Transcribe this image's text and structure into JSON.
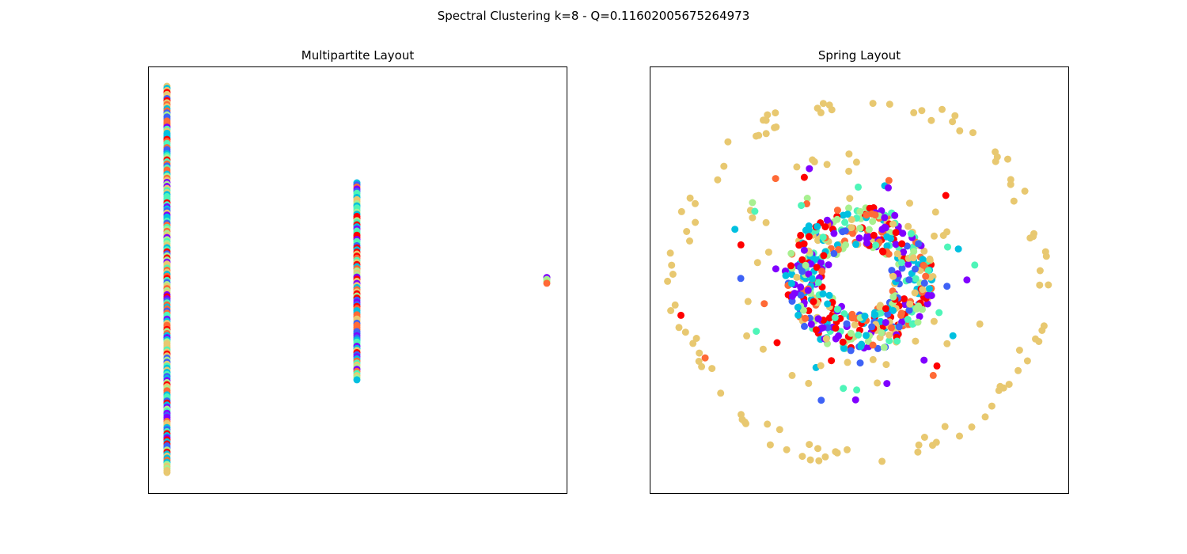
{
  "title": "Spectral Clustering k=8 - Q=0.11602005675264973",
  "chart_data": [
    {
      "type": "scatter",
      "title": "Multipartite Layout",
      "xlabel": "",
      "ylabel": "",
      "grid": false,
      "colors": [
        "#8000ff",
        "#3e62f6",
        "#00c0e0",
        "#4ef5b8",
        "#a8f090",
        "#e8c870",
        "#ff6a36",
        "#ff0000"
      ],
      "layers": [
        {
          "x": 0.0,
          "y_range": [
            0.0,
            1.0
          ],
          "points": 190
        },
        {
          "x": 0.5,
          "y_range": [
            0.24,
            0.75
          ],
          "points": 95
        },
        {
          "x": 1.0,
          "y_range": [
            0.49,
            0.505
          ],
          "points": 4
        }
      ]
    },
    {
      "type": "scatter",
      "title": "Spring Layout",
      "xlabel": "",
      "ylabel": "",
      "grid": false,
      "colors": [
        "#8000ff",
        "#3e62f6",
        "#00c0e0",
        "#4ef5b8",
        "#a8f090",
        "#e8c870",
        "#ff6a36",
        "#ff0000"
      ],
      "rings": [
        {
          "name_hint": "outer ring",
          "radius": 0.95,
          "points": 105
        },
        {
          "name_hint": "middle ring",
          "radius": 0.6,
          "points": 70
        },
        {
          "name_hint": "core",
          "radius": 0.38,
          "points": 520
        }
      ]
    }
  ]
}
